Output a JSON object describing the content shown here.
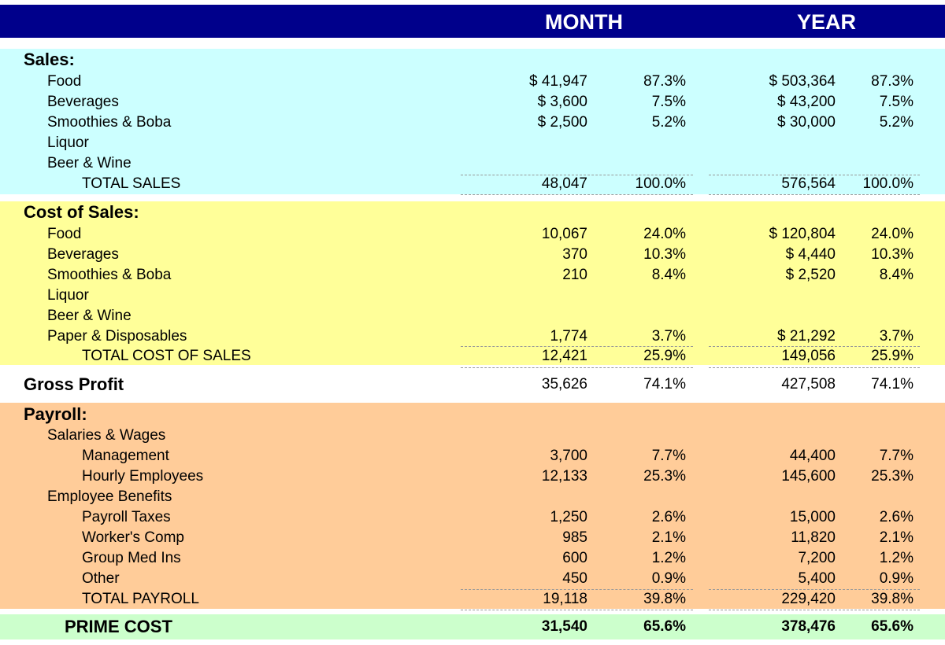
{
  "header": {
    "month": "MONTH",
    "year": "YEAR"
  },
  "sales": {
    "title": "Sales:",
    "rows": [
      {
        "label": "Food",
        "month": "$ 41,947",
        "month_pct": "87.3%",
        "year": "$ 503,364",
        "year_pct": "87.3%"
      },
      {
        "label": "Beverages",
        "month": "$ 3,600",
        "month_pct": "7.5%",
        "year": "$ 43,200",
        "year_pct": "7.5%"
      },
      {
        "label": "Smoothies & Boba",
        "month": "$ 2,500",
        "month_pct": "5.2%",
        "year": "$ 30,000",
        "year_pct": "5.2%"
      },
      {
        "label": "Liquor"
      },
      {
        "label": "Beer & Wine"
      }
    ],
    "total": {
      "label": "TOTAL SALES",
      "month": "48,047",
      "month_pct": "100.0%",
      "year": "576,564",
      "year_pct": "100.0%"
    }
  },
  "cost_of_sales": {
    "title": "Cost of Sales:",
    "rows": [
      {
        "label": "Food",
        "month": "10,067",
        "month_pct": "24.0%",
        "year": "$ 120,804",
        "year_pct": "24.0%"
      },
      {
        "label": "Beverages",
        "month": "370",
        "month_pct": "10.3%",
        "year": "$ 4,440",
        "year_pct": "10.3%"
      },
      {
        "label": "Smoothies & Boba",
        "month": "210",
        "month_pct": "8.4%",
        "year": "$ 2,520",
        "year_pct": "8.4%"
      },
      {
        "label": "Liquor"
      },
      {
        "label": "Beer & Wine"
      },
      {
        "label": "Paper & Disposables",
        "month": "1,774",
        "month_pct": "3.7%",
        "year": "$ 21,292",
        "year_pct": "3.7%"
      }
    ],
    "total": {
      "label": "TOTAL COST OF SALES",
      "month": "12,421",
      "month_pct": "25.9%",
      "year": "149,056",
      "year_pct": "25.9%"
    }
  },
  "gross_profit": {
    "label": "Gross Profit",
    "month": "35,626",
    "month_pct": "74.1%",
    "year": "427,508",
    "year_pct": "74.1%"
  },
  "payroll": {
    "title": "Payroll:",
    "salaries_label": "Salaries & Wages",
    "salaries": [
      {
        "label": "Management",
        "month": "3,700",
        "month_pct": "7.7%",
        "year": "44,400",
        "year_pct": "7.7%"
      },
      {
        "label": "Hourly Employees",
        "month": "12,133",
        "month_pct": "25.3%",
        "year": "145,600",
        "year_pct": "25.3%"
      }
    ],
    "benefits_label": "Employee Benefits",
    "benefits": [
      {
        "label": "Payroll Taxes",
        "month": "1,250",
        "month_pct": "2.6%",
        "year": "15,000",
        "year_pct": "2.6%"
      },
      {
        "label": "Worker's Comp",
        "month": "985",
        "month_pct": "2.1%",
        "year": "11,820",
        "year_pct": "2.1%"
      },
      {
        "label": "Group Med Ins",
        "month": "600",
        "month_pct": "1.2%",
        "year": "7,200",
        "year_pct": "1.2%"
      },
      {
        "label": "Other",
        "month": "450",
        "month_pct": "0.9%",
        "year": "5,400",
        "year_pct": "0.9%"
      }
    ],
    "total": {
      "label": "TOTAL PAYROLL",
      "month": "19,118",
      "month_pct": "39.8%",
      "year": "229,420",
      "year_pct": "39.8%"
    }
  },
  "prime_cost": {
    "label": "PRIME COST",
    "month": "31,540",
    "month_pct": "65.6%",
    "year": "378,476",
    "year_pct": "65.6%"
  },
  "colors": {
    "header_bg": "#00008b",
    "sales_bg": "#ccffff",
    "cost_bg": "#ffff99",
    "payroll_bg": "#ffcc99",
    "prime_bg": "#ccffcc"
  }
}
